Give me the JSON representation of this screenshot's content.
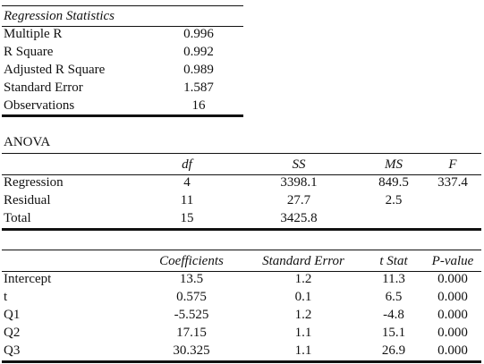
{
  "regression_statistics": {
    "title": "Regression Statistics",
    "rows": [
      {
        "label": "Multiple R",
        "value": "0.996"
      },
      {
        "label": "R Square",
        "value": "0.992"
      },
      {
        "label": "Adjusted R Square",
        "value": "0.989"
      },
      {
        "label": "Standard Error",
        "value": "1.587"
      },
      {
        "label": "Observations",
        "value": "16"
      }
    ]
  },
  "anova": {
    "title": "ANOVA",
    "headers": [
      "",
      "df",
      "SS",
      "MS",
      "F"
    ],
    "rows": [
      {
        "label": "Regression",
        "df": "4",
        "ss": "3398.1",
        "ms": "849.5",
        "f": "337.4"
      },
      {
        "label": "Residual",
        "df": "11",
        "ss": "27.7",
        "ms": "2.5",
        "f": ""
      },
      {
        "label": "Total",
        "df": "15",
        "ss": "3425.8",
        "ms": "",
        "f": ""
      }
    ]
  },
  "coefficients": {
    "headers": [
      "",
      "Coefficients",
      "Standard Error",
      "t Stat",
      "P-value"
    ],
    "rows": [
      {
        "label": "Intercept",
        "coef": "13.5",
        "se": "1.2",
        "t": "11.3",
        "p": "0.000"
      },
      {
        "label": "t",
        "coef": "0.575",
        "se": "0.1",
        "t": "6.5",
        "p": "0.000"
      },
      {
        "label": "Q1",
        "coef": "-5.525",
        "se": "1.2",
        "t": "-4.8",
        "p": "0.000"
      },
      {
        "label": "Q2",
        "coef": "17.15",
        "se": "1.1",
        "t": "15.1",
        "p": "0.000"
      },
      {
        "label": "Q3",
        "coef": "30.325",
        "se": "1.1",
        "t": "26.9",
        "p": "0.000"
      }
    ]
  }
}
